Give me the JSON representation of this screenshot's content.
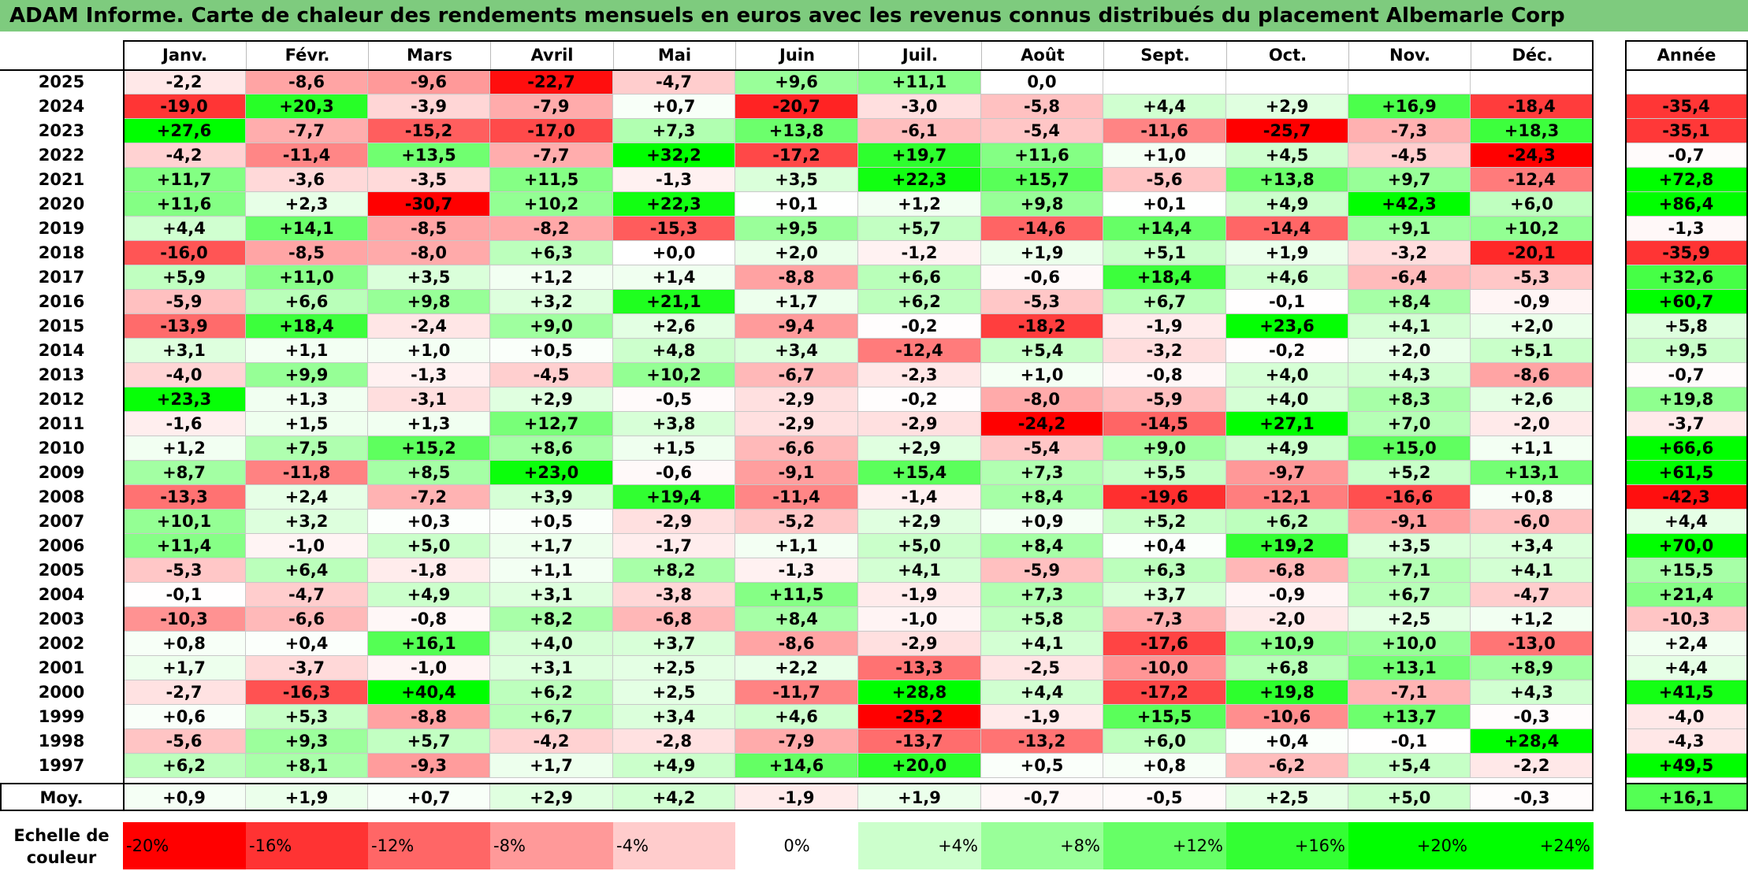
{
  "title": "ADAM Informe. Carte de chaleur des rendements mensuels en euros avec les revenus connus distribués du placement Albemarle Corp",
  "colors": {
    "title_bg": "#7ecb7e",
    "neg_max": "#ff0000",
    "pos_max": "#00ff00",
    "zero": "#ffffff"
  },
  "chart_data": {
    "type": "heatmap",
    "months": [
      "Janv.",
      "Févr.",
      "Mars",
      "Avril",
      "Mai",
      "Juin",
      "Juil.",
      "Août",
      "Sept.",
      "Oct.",
      "Nov.",
      "Déc."
    ],
    "year_header": "Année",
    "average_label": "Moy.",
    "rows": [
      {
        "year": "2025",
        "values": [
          "-2,2",
          "-8,6",
          "-9,6",
          "-22,7",
          "-4,7",
          "+9,6",
          "+11,1",
          "0,0",
          "",
          "",
          "",
          ""
        ],
        "annual": ""
      },
      {
        "year": "2024",
        "values": [
          "-19,0",
          "+20,3",
          "-3,9",
          "-7,9",
          "+0,7",
          "-20,7",
          "-3,0",
          "-5,8",
          "+4,4",
          "+2,9",
          "+16,9",
          "-18,4"
        ],
        "annual": "-35,4"
      },
      {
        "year": "2023",
        "values": [
          "+27,6",
          "-7,7",
          "-15,2",
          "-17,0",
          "+7,3",
          "+13,8",
          "-6,1",
          "-5,4",
          "-11,6",
          "-25,7",
          "-7,3",
          "+18,3"
        ],
        "annual": "-35,1"
      },
      {
        "year": "2022",
        "values": [
          "-4,2",
          "-11,4",
          "+13,5",
          "-7,7",
          "+32,2",
          "-17,2",
          "+19,7",
          "+11,6",
          "+1,0",
          "+4,5",
          "-4,5",
          "-24,3"
        ],
        "annual": "-0,7"
      },
      {
        "year": "2021",
        "values": [
          "+11,7",
          "-3,6",
          "-3,5",
          "+11,5",
          "-1,3",
          "+3,5",
          "+22,3",
          "+15,7",
          "-5,6",
          "+13,8",
          "+9,7",
          "-12,4"
        ],
        "annual": "+72,8"
      },
      {
        "year": "2020",
        "values": [
          "+11,6",
          "+2,3",
          "-30,7",
          "+10,2",
          "+22,3",
          "+0,1",
          "+1,2",
          "+9,8",
          "+0,1",
          "+4,9",
          "+42,3",
          "+6,0"
        ],
        "annual": "+86,4"
      },
      {
        "year": "2019",
        "values": [
          "+4,4",
          "+14,1",
          "-8,5",
          "-8,2",
          "-15,3",
          "+9,5",
          "+5,7",
          "-14,6",
          "+14,4",
          "-14,4",
          "+9,1",
          "+10,2"
        ],
        "annual": "-1,3"
      },
      {
        "year": "2018",
        "values": [
          "-16,0",
          "-8,5",
          "-8,0",
          "+6,3",
          "+0,0",
          "+2,0",
          "-1,2",
          "+1,9",
          "+5,1",
          "+1,9",
          "-3,2",
          "-20,1"
        ],
        "annual": "-35,9"
      },
      {
        "year": "2017",
        "values": [
          "+5,9",
          "+11,0",
          "+3,5",
          "+1,2",
          "+1,4",
          "-8,8",
          "+6,6",
          "-0,6",
          "+18,4",
          "+4,6",
          "-6,4",
          "-5,3"
        ],
        "annual": "+32,6"
      },
      {
        "year": "2016",
        "values": [
          "-5,9",
          "+6,6",
          "+9,8",
          "+3,2",
          "+21,1",
          "+1,7",
          "+6,2",
          "-5,3",
          "+6,7",
          "-0,1",
          "+8,4",
          "-0,9"
        ],
        "annual": "+60,7"
      },
      {
        "year": "2015",
        "values": [
          "-13,9",
          "+18,4",
          "-2,4",
          "+9,0",
          "+2,6",
          "-9,4",
          "-0,2",
          "-18,2",
          "-1,9",
          "+23,6",
          "+4,1",
          "+2,0"
        ],
        "annual": "+5,8"
      },
      {
        "year": "2014",
        "values": [
          "+3,1",
          "+1,1",
          "+1,0",
          "+0,5",
          "+4,8",
          "+3,4",
          "-12,4",
          "+5,4",
          "-3,2",
          "-0,2",
          "+2,0",
          "+5,1"
        ],
        "annual": "+9,5"
      },
      {
        "year": "2013",
        "values": [
          "-4,0",
          "+9,9",
          "-1,3",
          "-4,5",
          "+10,2",
          "-6,7",
          "-2,3",
          "+1,0",
          "-0,8",
          "+4,0",
          "+4,3",
          "-8,6"
        ],
        "annual": "-0,7"
      },
      {
        "year": "2012",
        "values": [
          "+23,3",
          "+1,3",
          "-3,1",
          "+2,9",
          "-0,5",
          "-2,9",
          "-0,2",
          "-8,0",
          "-5,9",
          "+4,0",
          "+8,3",
          "+2,6"
        ],
        "annual": "+19,8"
      },
      {
        "year": "2011",
        "values": [
          "-1,6",
          "+1,5",
          "+1,3",
          "+12,7",
          "+3,8",
          "-2,9",
          "-2,9",
          "-24,2",
          "-14,5",
          "+27,1",
          "+7,0",
          "-2,0"
        ],
        "annual": "-3,7"
      },
      {
        "year": "2010",
        "values": [
          "+1,2",
          "+7,5",
          "+15,2",
          "+8,6",
          "+1,5",
          "-6,6",
          "+2,9",
          "-5,4",
          "+9,0",
          "+4,9",
          "+15,0",
          "+1,1"
        ],
        "annual": "+66,6"
      },
      {
        "year": "2009",
        "values": [
          "+8,7",
          "-11,8",
          "+8,5",
          "+23,0",
          "-0,6",
          "-9,1",
          "+15,4",
          "+7,3",
          "+5,5",
          "-9,7",
          "+5,2",
          "+13,1"
        ],
        "annual": "+61,5"
      },
      {
        "year": "2008",
        "values": [
          "-13,3",
          "+2,4",
          "-7,2",
          "+3,9",
          "+19,4",
          "-11,4",
          "-1,4",
          "+8,4",
          "-19,6",
          "-12,1",
          "-16,6",
          "+0,8"
        ],
        "annual": "-42,3"
      },
      {
        "year": "2007",
        "values": [
          "+10,1",
          "+3,2",
          "+0,3",
          "+0,5",
          "-2,9",
          "-5,2",
          "+2,9",
          "+0,9",
          "+5,2",
          "+6,2",
          "-9,1",
          "-6,0"
        ],
        "annual": "+4,4"
      },
      {
        "year": "2006",
        "values": [
          "+11,4",
          "-1,0",
          "+5,0",
          "+1,7",
          "-1,7",
          "+1,1",
          "+5,0",
          "+8,4",
          "+0,4",
          "+19,2",
          "+3,5",
          "+3,4"
        ],
        "annual": "+70,0"
      },
      {
        "year": "2005",
        "values": [
          "-5,3",
          "+6,4",
          "-1,8",
          "+1,1",
          "+8,2",
          "-1,3",
          "+4,1",
          "-5,9",
          "+6,3",
          "-6,8",
          "+7,1",
          "+4,1"
        ],
        "annual": "+15,5"
      },
      {
        "year": "2004",
        "values": [
          "-0,1",
          "-4,7",
          "+4,9",
          "+3,1",
          "-3,8",
          "+11,5",
          "-1,9",
          "+7,3",
          "+3,7",
          "-0,9",
          "+6,7",
          "-4,7"
        ],
        "annual": "+21,4"
      },
      {
        "year": "2003",
        "values": [
          "-10,3",
          "-6,6",
          "-0,8",
          "+8,2",
          "-6,8",
          "+8,4",
          "-1,0",
          "+5,8",
          "-7,3",
          "-2,0",
          "+2,5",
          "+1,2"
        ],
        "annual": "-10,3"
      },
      {
        "year": "2002",
        "values": [
          "+0,8",
          "+0,4",
          "+16,1",
          "+4,0",
          "+3,7",
          "-8,6",
          "-2,9",
          "+4,1",
          "-17,6",
          "+10,9",
          "+10,0",
          "-13,0"
        ],
        "annual": "+2,4"
      },
      {
        "year": "2001",
        "values": [
          "+1,7",
          "-3,7",
          "-1,0",
          "+3,1",
          "+2,5",
          "+2,2",
          "-13,3",
          "-2,5",
          "-10,0",
          "+6,8",
          "+13,1",
          "+8,9"
        ],
        "annual": "+4,4"
      },
      {
        "year": "2000",
        "values": [
          "-2,7",
          "-16,3",
          "+40,4",
          "+6,2",
          "+2,5",
          "-11,7",
          "+28,8",
          "+4,4",
          "-17,2",
          "+19,8",
          "-7,1",
          "+4,3"
        ],
        "annual": "+41,5"
      },
      {
        "year": "1999",
        "values": [
          "+0,6",
          "+5,3",
          "-8,8",
          "+6,7",
          "+3,4",
          "+4,6",
          "-25,2",
          "-1,9",
          "+15,5",
          "-10,6",
          "+13,7",
          "-0,3"
        ],
        "annual": "-4,0"
      },
      {
        "year": "1998",
        "values": [
          "-5,6",
          "+9,3",
          "+5,7",
          "-4,2",
          "-2,8",
          "-7,9",
          "-13,7",
          "-13,2",
          "+6,0",
          "+0,4",
          "-0,1",
          "+28,4"
        ],
        "annual": "-4,3"
      },
      {
        "year": "1997",
        "values": [
          "+6,2",
          "+8,1",
          "-9,3",
          "+1,7",
          "+4,9",
          "+14,6",
          "+20,0",
          "+0,5",
          "+0,8",
          "-6,2",
          "+5,4",
          "-2,2"
        ],
        "annual": "+49,5"
      }
    ],
    "averages": [
      "+0,9",
      "+1,9",
      "+0,7",
      "+2,9",
      "+4,2",
      "-1,9",
      "+1,9",
      "-0,7",
      "-0,5",
      "+2,5",
      "+5,0",
      "-0,3"
    ],
    "average_annual": "+16,1",
    "scale_label": "Echelle de couleur",
    "scale": [
      "-20%",
      "-16%",
      "-12%",
      "-8%",
      "-4%",
      "0%",
      "+4%",
      "+8%",
      "+12%",
      "+16%",
      "+20%",
      "+24%"
    ]
  }
}
